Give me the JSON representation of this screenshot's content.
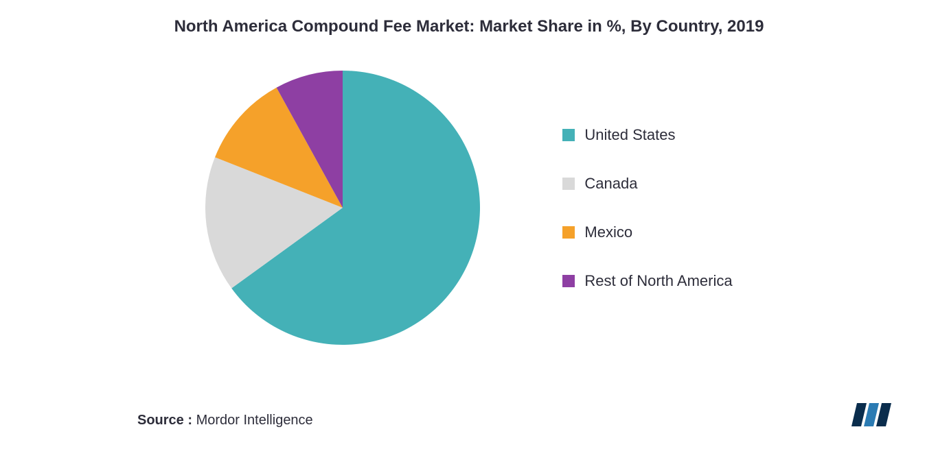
{
  "title": "North America Compound Fee Market: Market Share in %, By Country, 2019",
  "chart": {
    "type": "pie",
    "background_color": "#ffffff",
    "series": [
      {
        "label": "United States",
        "value": 65,
        "color": "#44b1b7"
      },
      {
        "label": "Canada",
        "value": 16,
        "color": "#d9d9d9"
      },
      {
        "label": "Mexico",
        "value": 11,
        "color": "#f5a12a"
      },
      {
        "label": "Rest of North America",
        "value": 8,
        "color": "#8e3fa3"
      }
    ],
    "title_fontsize": 24,
    "label_fontsize": 22,
    "title_color": "#2d2d3a",
    "label_color": "#2d2d3a"
  },
  "source": {
    "prefix": "Source :",
    "name": "Mordor Intelligence"
  },
  "logo": {
    "bars": [
      "#0a2d4d",
      "#2b7bb3",
      "#0a2d4d"
    ],
    "text_color": "#0a2d4d"
  }
}
